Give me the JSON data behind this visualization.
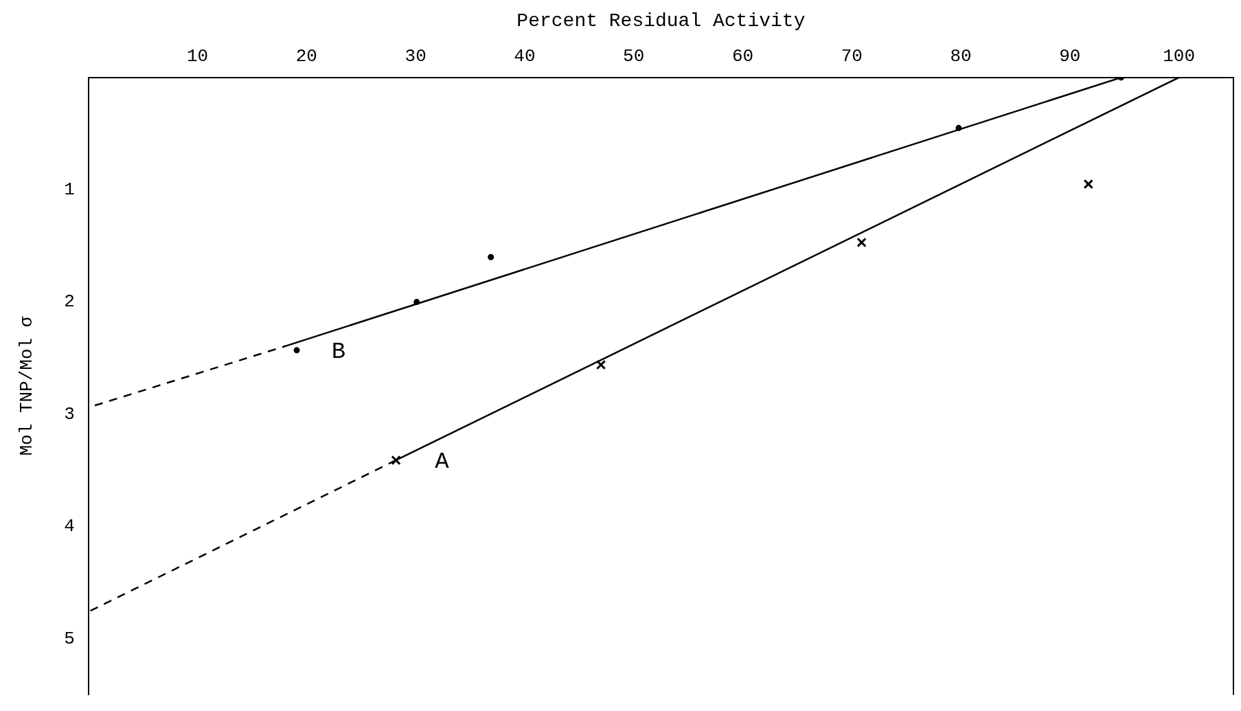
{
  "chart_data": {
    "type": "scatter",
    "xlabel": "Percent Residual Activity",
    "ylabel": "Mol TNP/Mol σ",
    "xlim": [
      0,
      105
    ],
    "xticks": [
      10,
      20,
      30,
      40,
      50,
      60,
      70,
      80,
      90,
      100
    ],
    "ylim": [
      5.5,
      0
    ],
    "yticks": [
      1,
      2,
      3,
      4,
      5
    ],
    "grid": false,
    "legend": false,
    "series": [
      {
        "marker": "circle",
        "color": "#000000",
        "x": [
          94.7,
          79.8,
          36.9,
          30.1,
          19.1
        ],
        "values": [
          0,
          0.45,
          1.6,
          2.0,
          2.43
        ]
      },
      {
        "marker": "cross",
        "color": "#000000",
        "x": [
          91.7,
          70.9,
          47.0,
          28.2
        ],
        "values": [
          0.95,
          1.47,
          2.56,
          3.41
        ]
      },
      {
        "type": "line",
        "name": "B",
        "line_style": "solid",
        "color": "#000000",
        "x": [
          94.7,
          18.5
        ],
        "values": [
          0,
          2.38
        ]
      },
      {
        "type": "line",
        "line_style": "dashed",
        "color": "#000000",
        "x": [
          18.5,
          0
        ],
        "values": [
          2.38,
          2.94
        ]
      },
      {
        "type": "line",
        "name": "A",
        "line_style": "solid",
        "color": "#000000",
        "x": [
          100,
          28.2
        ],
        "values": [
          0,
          3.41
        ]
      },
      {
        "type": "line",
        "line_style": "dashed",
        "color": "#000000",
        "x": [
          28.2,
          0
        ],
        "values": [
          3.41,
          4.76
        ]
      }
    ]
  }
}
